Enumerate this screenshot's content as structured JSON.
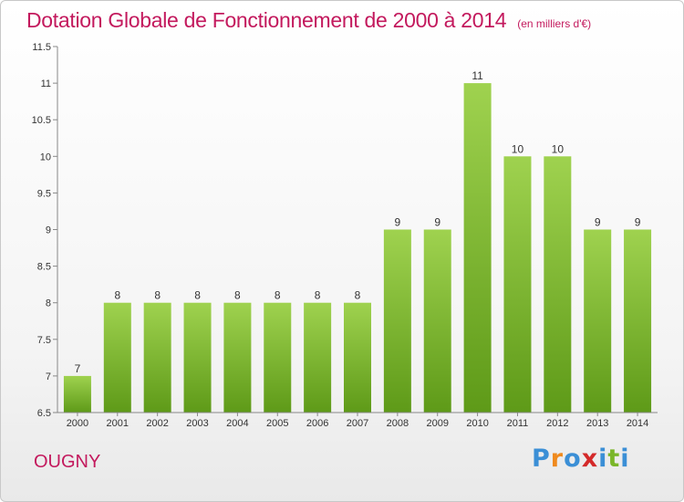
{
  "header": {
    "title": "Dotation Globale de Fonctionnement de 2000 à 2014",
    "unit": "(en milliers d'€)"
  },
  "footer": {
    "commune": "OUGNY",
    "brand": [
      "P",
      "r",
      "o",
      "x",
      "i",
      "t",
      "i"
    ],
    "brand_colors": [
      "#3b8fd6",
      "#ef8a1e",
      "#3b8fd6",
      "#d42a2a",
      "#3b8fd6",
      "#7ab629",
      "#3b8fd6"
    ]
  },
  "colors": {
    "title": "#c3195d",
    "bar_top": "#9fd24f",
    "bar_bottom": "#5e9a18"
  },
  "chart_data": {
    "type": "bar",
    "title": "Dotation Globale de Fonctionnement de 2000 à 2014",
    "subtitle": "(en milliers d'€)",
    "xlabel": "",
    "ylabel": "",
    "categories": [
      "2000",
      "2001",
      "2002",
      "2003",
      "2004",
      "2005",
      "2006",
      "2007",
      "2008",
      "2009",
      "2010",
      "2011",
      "2012",
      "2013",
      "2014"
    ],
    "values": [
      7,
      8,
      8,
      8,
      8,
      8,
      8,
      8,
      9,
      9,
      11,
      10,
      10,
      9,
      9
    ],
    "value_labels": [
      "7",
      "8",
      "8",
      "8",
      "8",
      "8",
      "8",
      "8",
      "9",
      "9",
      "11",
      "10",
      "10",
      "9",
      "9"
    ],
    "ylim": [
      6.5,
      11.5
    ],
    "yticks": [
      6.5,
      7,
      7.5,
      8,
      8.5,
      9,
      9.5,
      10,
      10.5,
      11,
      11.5
    ],
    "ytick_labels": [
      "6.5",
      "7",
      "7.5",
      "8",
      "8.5",
      "9",
      "9.5",
      "10",
      "10.5",
      "11",
      "11.5"
    ],
    "grid": false
  }
}
